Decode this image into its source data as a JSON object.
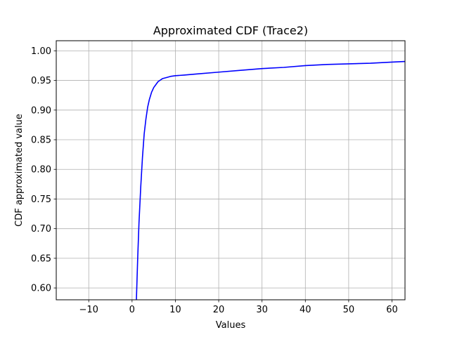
{
  "chart_data": {
    "type": "line",
    "title": "Approximated CDF (Trace2)",
    "xlabel": "Values",
    "ylabel": "CDF approximated value",
    "xlim": [
      -17.5,
      63
    ],
    "ylim": [
      0.58,
      1.017
    ],
    "xticks": [
      -10,
      0,
      10,
      20,
      30,
      40,
      50,
      60
    ],
    "xtick_labels": [
      "−10",
      "0",
      "10",
      "20",
      "30",
      "40",
      "50",
      "60"
    ],
    "yticks": [
      0.6,
      0.65,
      0.7,
      0.75,
      0.8,
      0.85,
      0.9,
      0.95,
      1.0
    ],
    "ytick_labels": [
      "0.60",
      "0.65",
      "0.70",
      "0.75",
      "0.80",
      "0.85",
      "0.90",
      "0.95",
      "1.00"
    ],
    "grid": true,
    "series": [
      {
        "color": "#0000ff",
        "x": [
          1.0,
          1.3,
          1.6,
          2.0,
          2.4,
          2.8,
          3.2,
          3.6,
          4.0,
          4.5,
          5.0,
          5.5,
          6.0,
          7.0,
          8.0,
          9.0,
          10.0,
          12.0,
          15.0,
          20.0,
          25.0,
          30.0,
          35.0,
          40.0,
          45.0,
          50.0,
          55.0,
          60.0,
          63.0
        ],
        "y": [
          0.58,
          0.65,
          0.71,
          0.77,
          0.82,
          0.86,
          0.885,
          0.905,
          0.918,
          0.93,
          0.938,
          0.943,
          0.948,
          0.953,
          0.955,
          0.957,
          0.958,
          0.959,
          0.961,
          0.964,
          0.967,
          0.97,
          0.972,
          0.975,
          0.977,
          0.978,
          0.979,
          0.981,
          0.982
        ]
      }
    ]
  }
}
